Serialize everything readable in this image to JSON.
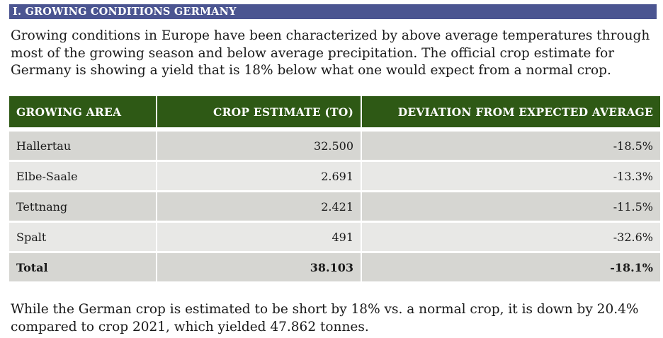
{
  "section": {
    "title": "I.  GROWING CONDITIONS GERMANY"
  },
  "intro": "Growing conditions in Europe have been characterized by above average temperatures through most of the growing season and below average precipitation. The official crop estimate for Germany is showing a yield that is 18% below what one would expect from a normal crop.",
  "table": {
    "headers": [
      "GROWING AREA",
      "CROP ESTIMATE (TO)",
      "DEVIATION FROM EXPECTED AVERAGE"
    ],
    "rows": [
      {
        "area": "Hallertau",
        "estimate": "32.500",
        "deviation": "-18.5%"
      },
      {
        "area": "Elbe-Saale",
        "estimate": "2.691",
        "deviation": "-13.3%"
      },
      {
        "area": "Tettnang",
        "estimate": "2.421",
        "deviation": "-11.5%"
      },
      {
        "area": "Spalt",
        "estimate": "491",
        "deviation": "-32.6%"
      }
    ],
    "total": {
      "area": "Total",
      "estimate": "38.103",
      "deviation": "-18.1%"
    }
  },
  "outro": "While the German crop is estimated to be short by 18% vs. a normal crop, it is down by 20.4% compared to crop 2021, which yielded 47.862 tonnes."
}
